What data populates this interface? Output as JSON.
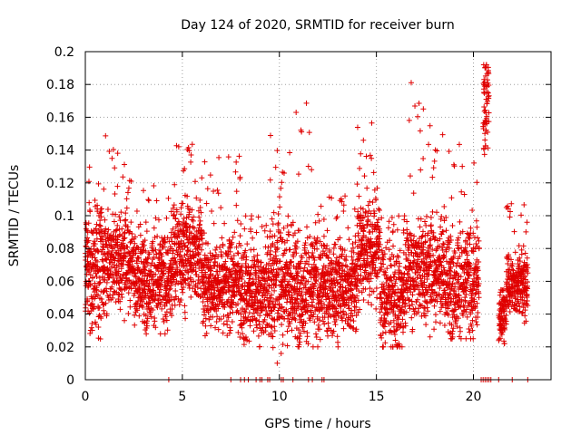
{
  "chart_data": {
    "type": "scatter",
    "title": "Day 124 of 2020, SRMTID for receiver burn",
    "xlabel": "GPS time / hours",
    "ylabel": "SRMTID / TECUs",
    "xlim": [
      0,
      24
    ],
    "ylim": [
      0,
      0.2
    ],
    "grid": true,
    "marker": "plus",
    "color": "#e00000",
    "x_ticks": [
      0,
      5,
      10,
      15,
      20
    ],
    "x_tick_labels": [
      "0",
      "5",
      "10",
      "15",
      "20"
    ],
    "y_ticks": [
      0,
      0.02,
      0.04,
      0.06,
      0.08,
      0.1,
      0.12,
      0.14,
      0.16,
      0.18,
      0.2
    ],
    "y_tick_labels": [
      "0",
      "0.02",
      "0.04",
      "0.06",
      "0.08",
      "0.1",
      "0.12",
      "0.14",
      "0.16",
      "0.18",
      "0.2"
    ],
    "series": [
      {
        "name": "SRMTID",
        "profile": [
          {
            "start": 0.0,
            "end": 1.0,
            "mean": 0.065,
            "spread": 0.022,
            "min": 0.018,
            "max": 0.13,
            "step": 0.012
          },
          {
            "start": 1.0,
            "end": 2.5,
            "mean": 0.072,
            "spread": 0.018,
            "min": 0.035,
            "max": 0.15,
            "step": 0.012
          },
          {
            "start": 2.5,
            "end": 4.5,
            "mean": 0.06,
            "spread": 0.017,
            "min": 0.028,
            "max": 0.12,
            "step": 0.012
          },
          {
            "start": 4.5,
            "end": 6.0,
            "mean": 0.078,
            "spread": 0.02,
            "min": 0.035,
            "max": 0.147,
            "step": 0.012
          },
          {
            "start": 6.0,
            "end": 8.0,
            "mean": 0.058,
            "spread": 0.016,
            "min": 0.026,
            "max": 0.138,
            "step": 0.012
          },
          {
            "start": 8.0,
            "end": 9.5,
            "mean": 0.052,
            "spread": 0.018,
            "min": 0.02,
            "max": 0.1,
            "step": 0.012
          },
          {
            "start": 9.5,
            "end": 10.5,
            "mean": 0.06,
            "spread": 0.025,
            "min": 0.003,
            "max": 0.165,
            "step": 0.012
          },
          {
            "start": 10.5,
            "end": 12.0,
            "mean": 0.055,
            "spread": 0.02,
            "min": 0.02,
            "max": 0.172,
            "step": 0.012
          },
          {
            "start": 12.0,
            "end": 14.0,
            "mean": 0.056,
            "spread": 0.018,
            "min": 0.02,
            "max": 0.115,
            "step": 0.012
          },
          {
            "start": 14.0,
            "end": 15.2,
            "mean": 0.08,
            "spread": 0.02,
            "min": 0.035,
            "max": 0.159,
            "step": 0.012
          },
          {
            "start": 15.2,
            "end": 16.5,
            "mean": 0.048,
            "spread": 0.018,
            "min": 0.02,
            "max": 0.1,
            "step": 0.012
          },
          {
            "start": 16.5,
            "end": 18.5,
            "mean": 0.066,
            "spread": 0.02,
            "min": 0.022,
            "max": 0.183,
            "step": 0.012
          },
          {
            "start": 18.5,
            "end": 20.3,
            "mean": 0.058,
            "spread": 0.02,
            "min": 0.025,
            "max": 0.146,
            "step": 0.012
          },
          {
            "start": 20.5,
            "end": 20.8,
            "mean": 0.17,
            "spread": 0.02,
            "min": 0.12,
            "max": 0.192,
            "step": 0.012
          },
          {
            "start": 21.3,
            "end": 21.7,
            "mean": 0.04,
            "spread": 0.01,
            "min": 0.022,
            "max": 0.06,
            "step": 0.012
          },
          {
            "start": 21.7,
            "end": 22.8,
            "mean": 0.058,
            "spread": 0.012,
            "min": 0.03,
            "max": 0.11,
            "step": 0.012
          }
        ],
        "zero_points_x": [
          4.3,
          7.5,
          8.0,
          8.2,
          8.4,
          8.8,
          9.0,
          9.1,
          9.4,
          9.5,
          10.1,
          10.2,
          10.7,
          11.5,
          11.7,
          12.2,
          12.3,
          20.4,
          20.5,
          20.6,
          20.7,
          20.8,
          20.9,
          21.3,
          22.0,
          22.8
        ]
      }
    ]
  }
}
